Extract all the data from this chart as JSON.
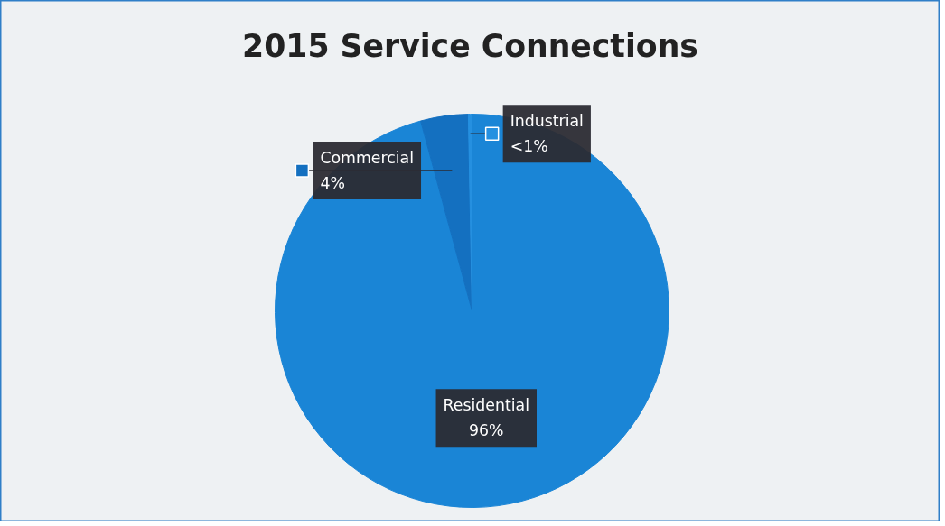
{
  "chart_data": {
    "type": "pie",
    "title": "2015 Service Connections",
    "categories": [
      "Residential",
      "Commercial",
      "Industrial"
    ],
    "values": [
      95.8,
      3.9,
      0.3
    ],
    "value_labels": [
      "96%",
      "4%",
      "<1%"
    ],
    "colors": [
      "#1a85d6",
      "#1470c0",
      "#2590e0"
    ]
  }
}
